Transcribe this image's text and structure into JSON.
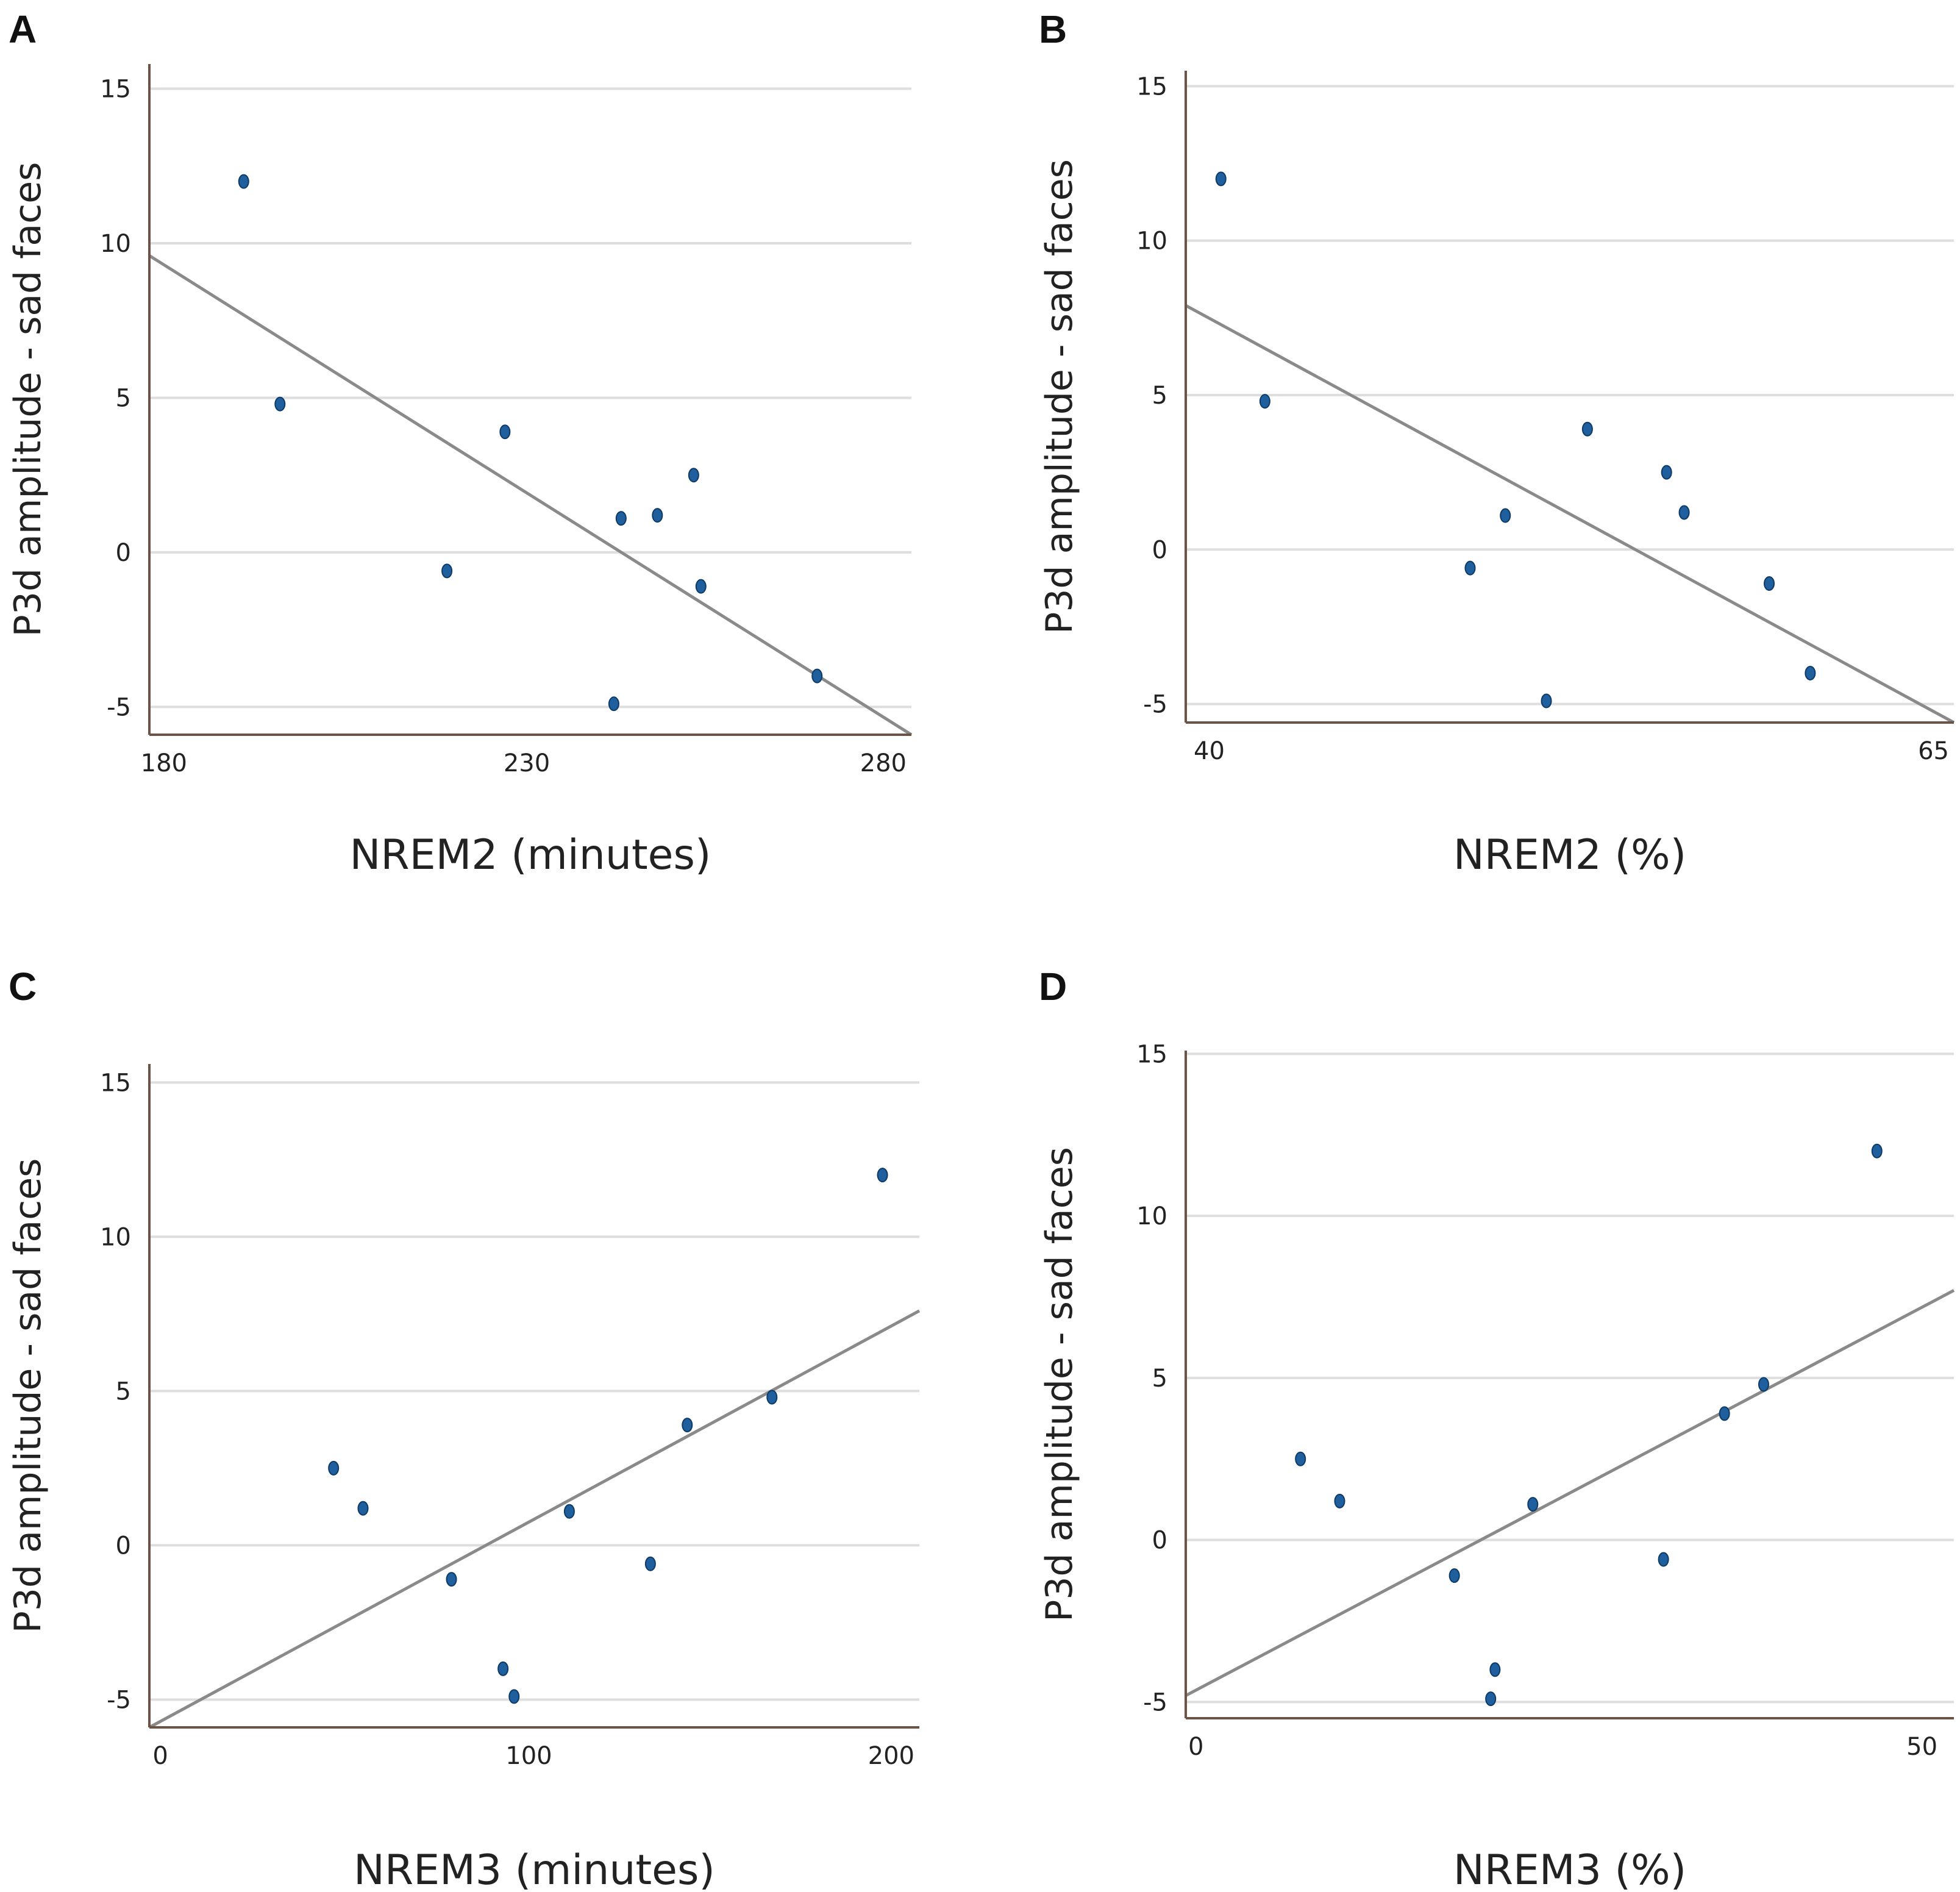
{
  "colors": {
    "point": "#1f5f9e",
    "fit_line": "#8a8a8a",
    "axis": "#6b5445",
    "grid": "#dedede"
  },
  "chart_data": [
    {
      "panel": "A",
      "type": "scatter",
      "xlabel": "NREM2 (minutes)",
      "ylabel": "P3d amplitude - sad faces",
      "xlim": [
        178,
        283
      ],
      "ylim": [
        -5.9,
        15.8
      ],
      "xticks": [
        180,
        230,
        280
      ],
      "xtick_labels": [
        "180",
        "230",
        "280"
      ],
      "yticks": [
        -5,
        0,
        5,
        10,
        15
      ],
      "ytick_labels": [
        "-5",
        "0",
        "5",
        "10",
        "15"
      ],
      "points": [
        {
          "x": 191,
          "y": 12.0
        },
        {
          "x": 196,
          "y": 4.8
        },
        {
          "x": 227,
          "y": 3.9
        },
        {
          "x": 219,
          "y": -0.6
        },
        {
          "x": 243,
          "y": 1.1
        },
        {
          "x": 248,
          "y": 1.2
        },
        {
          "x": 253,
          "y": 2.5
        },
        {
          "x": 254,
          "y": -1.1
        },
        {
          "x": 242,
          "y": -4.9
        },
        {
          "x": 270,
          "y": -4.0
        }
      ],
      "fit_line": [
        {
          "x": 178,
          "y": 9.6
        },
        {
          "x": 283,
          "y": -5.9
        }
      ]
    },
    {
      "panel": "B",
      "type": "scatter",
      "xlabel": "NREM2 (%)",
      "ylabel": "P3d amplitude - sad faces",
      "xlim": [
        39.2,
        65.4
      ],
      "ylim": [
        -5.6,
        15.5
      ],
      "xticks": [
        40,
        65
      ],
      "xtick_labels": [
        "40",
        "65"
      ],
      "yticks": [
        -5,
        0,
        5,
        10,
        15
      ],
      "ytick_labels": [
        "-5",
        "0",
        "5",
        "10",
        "15"
      ],
      "points": [
        {
          "x": 40.4,
          "y": 12.0
        },
        {
          "x": 41.9,
          "y": 4.8
        },
        {
          "x": 48.9,
          "y": -0.6
        },
        {
          "x": 50.1,
          "y": 1.1
        },
        {
          "x": 51.5,
          "y": -4.9
        },
        {
          "x": 52.9,
          "y": 3.9
        },
        {
          "x": 55.6,
          "y": 2.5
        },
        {
          "x": 56.2,
          "y": 1.2
        },
        {
          "x": 59.1,
          "y": -1.1
        },
        {
          "x": 60.5,
          "y": -4.0
        }
      ],
      "fit_line": [
        {
          "x": 39.2,
          "y": 7.9
        },
        {
          "x": 65.4,
          "y": -5.6
        }
      ]
    },
    {
      "panel": "C",
      "type": "scatter",
      "xlabel": "NREM3 (minutes)",
      "ylabel": "P3d amplitude - sad faces",
      "xlim": [
        -3,
        206
      ],
      "ylim": [
        -5.9,
        15.6
      ],
      "xticks": [
        0,
        100,
        200
      ],
      "xtick_labels": [
        "0",
        "100",
        "200"
      ],
      "yticks": [
        -5,
        0,
        5,
        10,
        15
      ],
      "ytick_labels": [
        "-5",
        "0",
        "5",
        "10",
        "15"
      ],
      "points": [
        {
          "x": 47,
          "y": 2.5
        },
        {
          "x": 55,
          "y": 1.2
        },
        {
          "x": 79,
          "y": -1.1
        },
        {
          "x": 93,
          "y": -4.0
        },
        {
          "x": 96,
          "y": -4.9
        },
        {
          "x": 111,
          "y": 1.1
        },
        {
          "x": 133,
          "y": -0.6
        },
        {
          "x": 143,
          "y": 3.9
        },
        {
          "x": 166,
          "y": 4.8
        },
        {
          "x": 196,
          "y": 12.0
        }
      ],
      "fit_line": [
        {
          "x": -3,
          "y": -5.9
        },
        {
          "x": 206,
          "y": 7.6
        }
      ]
    },
    {
      "panel": "D",
      "type": "scatter",
      "xlabel": "NREM3 (%)",
      "ylabel": "P3d amplitude - sad faces",
      "xlim": [
        -0.7,
        52.2
      ],
      "ylim": [
        -5.5,
        15.1
      ],
      "xticks": [
        0,
        50
      ],
      "xtick_labels": [
        "0",
        "50"
      ],
      "yticks": [
        -5,
        0,
        5,
        10,
        15
      ],
      "ytick_labels": [
        "-5",
        "0",
        "5",
        "10",
        "15"
      ],
      "points": [
        {
          "x": 7.2,
          "y": 2.5
        },
        {
          "x": 9.9,
          "y": 1.2
        },
        {
          "x": 17.8,
          "y": -1.1
        },
        {
          "x": 20.6,
          "y": -4.0
        },
        {
          "x": 20.3,
          "y": -4.9
        },
        {
          "x": 23.2,
          "y": 1.1
        },
        {
          "x": 32.2,
          "y": -0.6
        },
        {
          "x": 36.4,
          "y": 3.9
        },
        {
          "x": 39.1,
          "y": 4.8
        },
        {
          "x": 46.9,
          "y": 12.0
        }
      ],
      "fit_line": [
        {
          "x": -0.7,
          "y": -4.8
        },
        {
          "x": 52.2,
          "y": 7.7
        }
      ]
    }
  ]
}
